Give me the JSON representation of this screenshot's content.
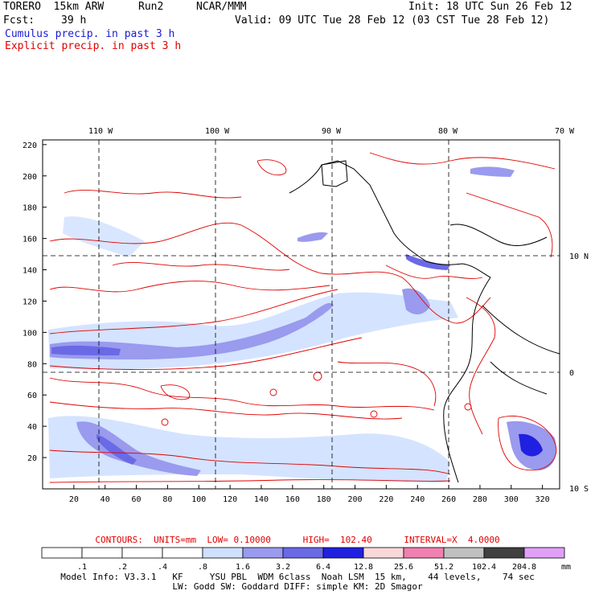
{
  "header": {
    "model": "TORERO  15km ARW",
    "run": "Run2",
    "org": "NCAR/MMM",
    "init": "Init: 18 UTC Sun 26 Feb 12",
    "fcst_label": "Fcst:",
    "fcst_value": "39 h",
    "valid": "Valid: 09 UTC Tue 28 Feb 12 (03 CST Tue 28 Feb 12)",
    "cumulus": "Cumulus precip. in past 3 h",
    "explicit": "Explicit precip. in past 3 h"
  },
  "map": {
    "lon_labels": [
      "110 W",
      "100 W",
      "90 W",
      "80 W",
      "70 W"
    ],
    "lat_labels": [
      "10 N",
      "0",
      "10 S"
    ],
    "y_ticks": [
      "20",
      "40",
      "60",
      "80",
      "100",
      "120",
      "140",
      "160",
      "180",
      "200",
      "220"
    ],
    "x_ticks": [
      "20",
      "40",
      "60",
      "80",
      "100",
      "120",
      "140",
      "160",
      "180",
      "200",
      "220",
      "240",
      "260",
      "280",
      "300",
      "320"
    ],
    "colors": {
      "contour": "#e00000",
      "coast": "#000000",
      "grid": "#000000",
      "precip_light": "#cfe0ff",
      "precip_mid": "#8a8ae8",
      "precip_heavy": "#4b4be0",
      "precip_max": "#1414d8"
    }
  },
  "contour_info": {
    "text": "CONTOURS:  UNITS=mm  LOW= 0.10000      HIGH=  102.40      INTERVAL=X  4.0000"
  },
  "colorbar": {
    "labels": [
      ".1",
      ".2",
      ".4",
      ".8",
      "1.6",
      "3.2",
      "6.4",
      "12.8",
      "25.6",
      "51.2",
      "102.4",
      "204.8"
    ],
    "colors": [
      "#ffffff",
      "#ffffff",
      "#ffffff",
      "#ffffff",
      "#cfe0ff",
      "#9a9aee",
      "#6a6ae6",
      "#2020e0",
      "#f8d8d8",
      "#f080b0",
      "#c0c0c0",
      "#404040",
      "#e0a0f8"
    ],
    "units": "mm"
  },
  "footer": {
    "line1": "Model Info: V3.3.1   KF     YSU PBL  WDM 6class  Noah LSM  15 km,    44 levels,    74 sec",
    "line2": "LW: Godd SW: Goddard DIFF: simple KM: 2D Smagor"
  }
}
